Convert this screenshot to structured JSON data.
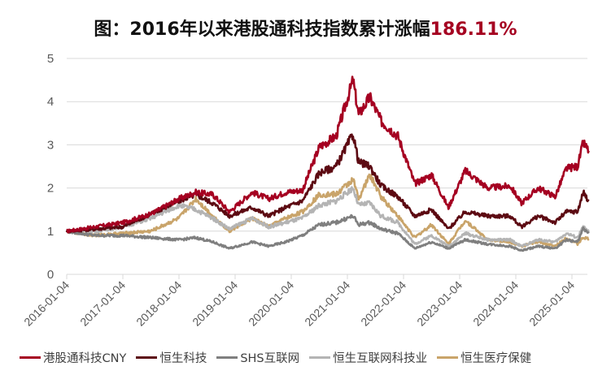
{
  "title": {
    "prefix": "图：2016年以来港股通科技指数累计涨幅",
    "highlight": "186.11%"
  },
  "legend": [
    {
      "label": "港股通科技CNY",
      "color": "#A50021"
    },
    {
      "label": "恒生科技",
      "color": "#5C0A12"
    },
    {
      "label": "SHS互联网",
      "color": "#7F7F7F"
    },
    {
      "label": "恒生互联网科技业",
      "color": "#B4B4B4"
    },
    {
      "label": "恒生医疗保健",
      "color": "#C9A46A"
    }
  ],
  "chart_data": {
    "type": "line",
    "title": "图：2016年以来港股通科技指数累计涨幅186.11%",
    "xlabel": "",
    "ylabel": "",
    "ylim": [
      0,
      5
    ],
    "yticks": [
      "0",
      "1",
      "2",
      "3",
      "4",
      "5"
    ],
    "grid": "horizontal",
    "legend_position": "bottom",
    "x_tick_labels": [
      "2016-01-04",
      "2017-01-04",
      "2018-01-04",
      "2019-01-04",
      "2020-01-04",
      "2021-01-04",
      "2022-01-04",
      "2023-01-04",
      "2024-01-04",
      "2025-01-04"
    ],
    "x": [
      2016.0,
      2016.5,
      2017.0,
      2017.5,
      2018.0,
      2018.3,
      2018.6,
      2018.9,
      2019.3,
      2019.6,
      2019.9,
      2020.2,
      2020.5,
      2020.8,
      2021.1,
      2021.2,
      2021.4,
      2021.6,
      2021.9,
      2022.2,
      2022.5,
      2022.8,
      2023.1,
      2023.5,
      2023.9,
      2024.1,
      2024.4,
      2024.7,
      2024.9,
      2025.1,
      2025.2,
      2025.3
    ],
    "series": [
      {
        "name": "港股通科技CNY",
        "color": "#A50021",
        "values": [
          1.0,
          1.1,
          1.2,
          1.4,
          1.75,
          1.9,
          1.85,
          1.45,
          1.9,
          1.75,
          1.9,
          1.95,
          2.95,
          3.2,
          4.5,
          3.7,
          4.1,
          3.55,
          3.2,
          2.1,
          2.3,
          1.55,
          2.4,
          2.0,
          2.05,
          1.65,
          2.0,
          1.8,
          2.45,
          2.5,
          3.05,
          2.86
        ]
      },
      {
        "name": "恒生科技",
        "color": "#5C0A12",
        "values": [
          1.0,
          1.05,
          1.1,
          1.4,
          1.7,
          1.85,
          1.65,
          1.35,
          1.55,
          1.35,
          1.55,
          1.7,
          2.35,
          2.5,
          3.25,
          2.6,
          2.5,
          2.05,
          1.8,
          1.35,
          1.5,
          1.05,
          1.45,
          1.35,
          1.35,
          1.1,
          1.35,
          1.2,
          1.45,
          1.45,
          1.9,
          1.7
        ]
      },
      {
        "name": "SHS互联网",
        "color": "#7F7F7F",
        "values": [
          1.0,
          0.9,
          0.9,
          0.85,
          0.8,
          0.85,
          0.75,
          0.6,
          0.75,
          0.65,
          0.75,
          0.9,
          1.15,
          1.2,
          1.35,
          1.15,
          1.2,
          1.05,
          0.95,
          0.6,
          0.75,
          0.6,
          0.8,
          0.7,
          0.65,
          0.55,
          0.65,
          0.6,
          0.8,
          0.75,
          1.05,
          0.95
        ]
      },
      {
        "name": "恒生互联网科技业",
        "color": "#B4B4B4",
        "values": [
          1.0,
          1.0,
          1.1,
          1.3,
          1.6,
          1.5,
          1.3,
          1.05,
          1.3,
          1.1,
          1.2,
          1.3,
          1.6,
          1.7,
          2.0,
          1.6,
          1.65,
          1.35,
          1.2,
          0.7,
          0.9,
          0.65,
          0.95,
          0.8,
          0.8,
          0.65,
          0.8,
          0.75,
          0.95,
          0.85,
          1.1,
          0.98
        ]
      },
      {
        "name": "恒生医疗保健",
        "color": "#C9A46A",
        "values": [
          1.0,
          0.9,
          0.95,
          1.0,
          1.3,
          1.75,
          1.35,
          1.0,
          1.3,
          1.1,
          1.3,
          1.45,
          1.85,
          1.85,
          2.2,
          1.75,
          2.3,
          1.8,
          1.35,
          0.85,
          1.15,
          0.7,
          1.25,
          0.8,
          0.75,
          0.65,
          0.75,
          0.65,
          0.85,
          0.7,
          0.85,
          0.82
        ]
      }
    ]
  }
}
